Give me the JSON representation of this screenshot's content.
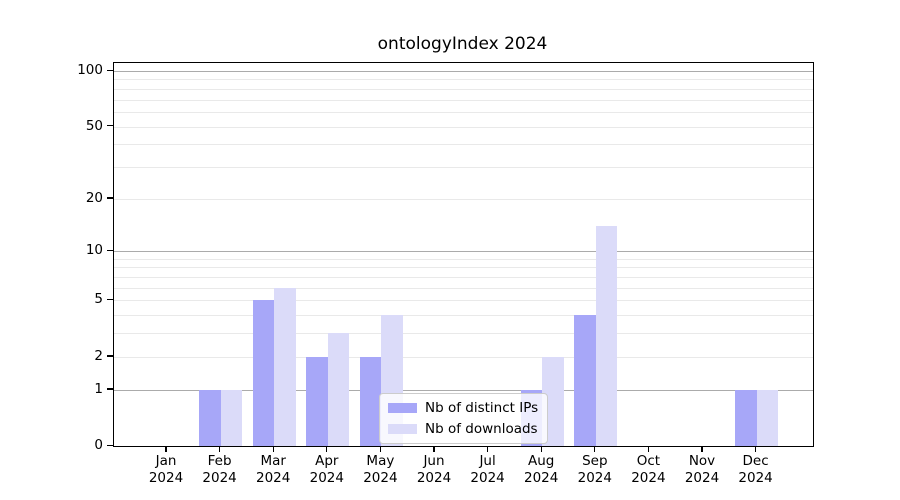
{
  "title": "ontologyIndex 2024",
  "chart_data": {
    "type": "bar",
    "title": "ontologyIndex 2024",
    "categories": [
      "Jan",
      "Feb",
      "Mar",
      "Apr",
      "May",
      "Jun",
      "Jul",
      "Aug",
      "Sep",
      "Oct",
      "Nov",
      "Dec"
    ],
    "year": "2024",
    "series": [
      {
        "name": "Nb of distinct IPs",
        "color": "#a7a7f8",
        "values": [
          0,
          1,
          5,
          2,
          2,
          0,
          0,
          1,
          4,
          0,
          0,
          1
        ]
      },
      {
        "name": "Nb of downloads",
        "color": "#dbdbf9",
        "values": [
          0,
          1,
          6,
          3,
          4,
          0,
          0,
          2,
          14,
          0,
          0,
          1
        ]
      }
    ],
    "yscale": "log1p",
    "ylim": [
      0,
      100
    ],
    "ytick_labels": [
      "0",
      "1",
      "2",
      "5",
      "10",
      "20",
      "50",
      "100"
    ],
    "ytick_values": [
      0,
      1,
      2,
      5,
      10,
      20,
      50,
      100
    ],
    "major_gridlines": [
      1,
      10,
      100
    ],
    "minor_gridlines": [
      2,
      3,
      4,
      5,
      6,
      7,
      8,
      9,
      20,
      30,
      40,
      50,
      60,
      70,
      80,
      90
    ],
    "grid": true,
    "legend_position": "lower center"
  },
  "colors": {
    "major_grid": "#ababab",
    "minor_grid": "#e9e9e9",
    "axis": "#000000",
    "background": "#ffffff"
  }
}
